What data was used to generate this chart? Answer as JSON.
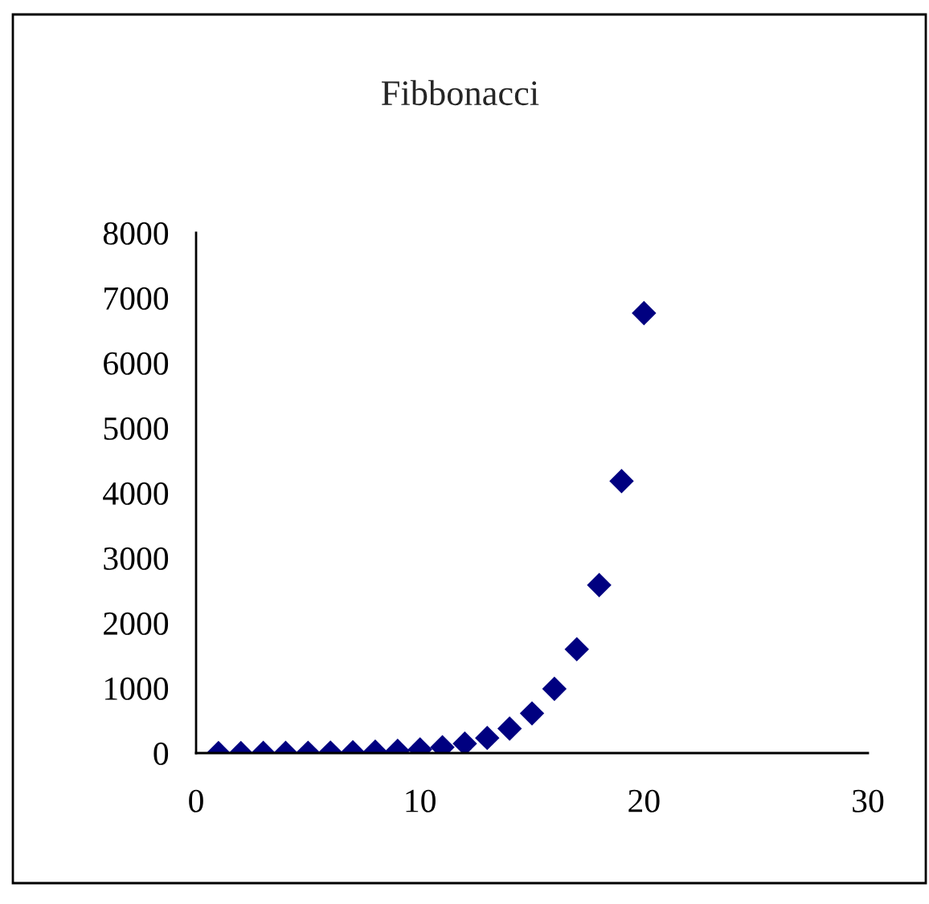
{
  "chart_data": {
    "type": "scatter",
    "title": "Fibbonacci",
    "x": [
      1,
      2,
      3,
      4,
      5,
      6,
      7,
      8,
      9,
      10,
      11,
      12,
      13,
      14,
      15,
      16,
      17,
      18,
      19,
      20
    ],
    "series": [
      {
        "color": "#000080",
        "values": [
          1,
          1,
          2,
          3,
          5,
          8,
          13,
          21,
          34,
          55,
          89,
          144,
          233,
          377,
          610,
          987,
          1597,
          2584,
          4181,
          6765
        ]
      }
    ],
    "xlim": [
      0,
      30
    ],
    "xticks": [
      0,
      10,
      20,
      30
    ],
    "ylim": [
      0,
      8000
    ],
    "yticks": [
      0,
      1000,
      2000,
      3000,
      4000,
      5000,
      6000,
      7000,
      8000
    ],
    "marker": "diamond",
    "grid": false
  }
}
